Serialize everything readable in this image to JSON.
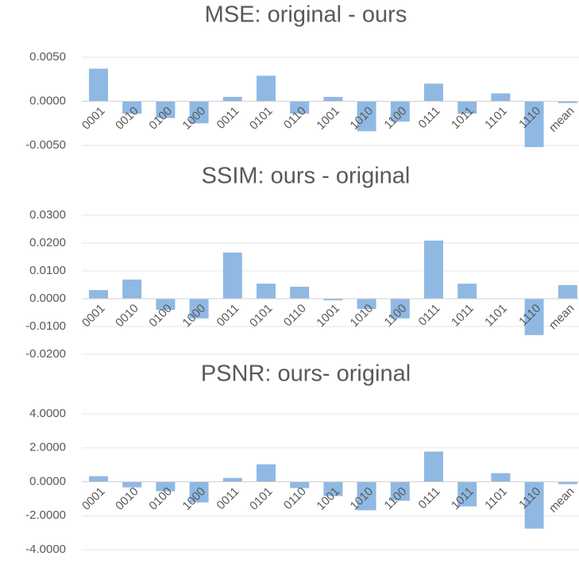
{
  "chart_data": [
    {
      "type": "bar",
      "title": "MSE: original - ours",
      "color": "#8fb9e3",
      "grid": true,
      "categories": [
        "0001",
        "0010",
        "0100",
        "1000",
        "0011",
        "0101",
        "0110",
        "1001",
        "1010",
        "1100",
        "0111",
        "1011",
        "1101",
        "1110",
        "mean"
      ],
      "values": [
        0.0037,
        -0.0014,
        -0.0019,
        -0.0025,
        0.0005,
        0.0029,
        -0.0014,
        0.0005,
        -0.0034,
        -0.0023,
        0.002,
        -0.0014,
        0.0009,
        -0.0052,
        -0.0002
      ],
      "ylim": [
        -0.005,
        0.005
      ],
      "yticks": [
        {
          "value": -0.005,
          "label": "-0.0050"
        },
        {
          "value": 0,
          "label": "0.0000"
        },
        {
          "value": 0.005,
          "label": "0.0050"
        }
      ]
    },
    {
      "type": "bar",
      "title": "SSIM: ours - original",
      "color": "#8fb9e3",
      "grid": true,
      "categories": [
        "0001",
        "0010",
        "0100",
        "1000",
        "0011",
        "0101",
        "0110",
        "1001",
        "1010",
        "1100",
        "0111",
        "1011",
        "1101",
        "1110",
        "mean"
      ],
      "values": [
        0.0031,
        0.0069,
        -0.004,
        -0.0071,
        0.0166,
        0.0054,
        0.0043,
        -0.0006,
        -0.0037,
        -0.0071,
        0.0209,
        0.0054,
        0,
        -0.0131,
        0.0049
      ],
      "ylim": [
        -0.02,
        0.03
      ],
      "yticks": [
        {
          "value": -0.02,
          "label": "-0.0200"
        },
        {
          "value": -0.01,
          "label": "-0.0100"
        },
        {
          "value": 0,
          "label": "0.0000"
        },
        {
          "value": 0.01,
          "label": "0.0100"
        },
        {
          "value": 0.02,
          "label": "0.0200"
        },
        {
          "value": 0.03,
          "label": "0.0300"
        }
      ]
    },
    {
      "type": "bar",
      "title": "PSNR: ours- original",
      "color": "#8fb9e3",
      "grid": true,
      "categories": [
        "0001",
        "0010",
        "0100",
        "1000",
        "0011",
        "0101",
        "0110",
        "1001",
        "1010",
        "1100",
        "0111",
        "1011",
        "1101",
        "1110",
        "mean"
      ],
      "values": [
        0.33,
        -0.33,
        -0.56,
        -1.22,
        0.23,
        1.03,
        -0.37,
        -0.84,
        -1.68,
        -1.12,
        1.78,
        -1.45,
        0.51,
        -2.76,
        -0.14
      ],
      "ylim": [
        -4,
        4
      ],
      "yticks": [
        {
          "value": -4,
          "label": "-4.0000"
        },
        {
          "value": -2,
          "label": "-2.0000"
        },
        {
          "value": 0,
          "label": "0.0000"
        },
        {
          "value": 2,
          "label": "2.0000"
        },
        {
          "value": 4,
          "label": "4.0000"
        }
      ]
    }
  ]
}
